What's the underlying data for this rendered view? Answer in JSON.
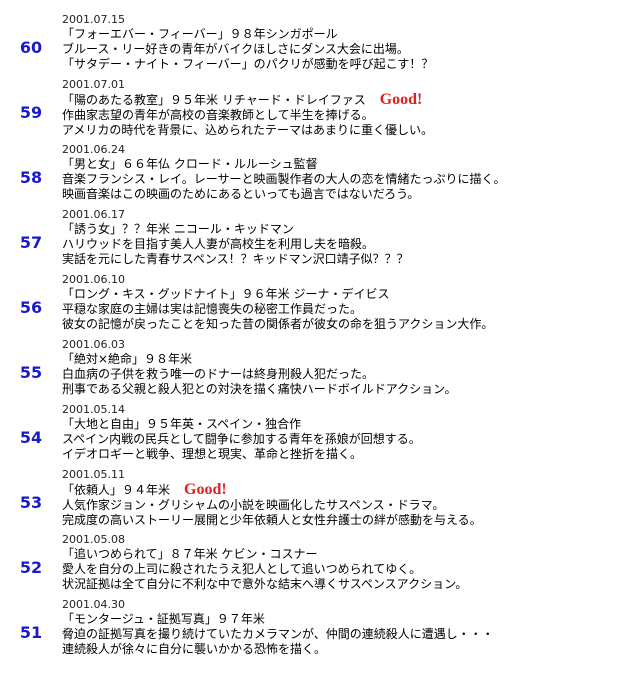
{
  "entries": [
    {
      "number": "60",
      "date": "2001.07.15",
      "title": "「フォーエバー・フィーバー」９８年シンガポール",
      "lines": [
        "ブルース・リー好きの青年がバイクほしさにダンス大会に出場。",
        "「サタデー・ナイト・フィーバー」のパクリが感動を呼び起こす！？"
      ]
    },
    {
      "number": "59",
      "date": "2001.07.01",
      "title": "「陽のあたる教室」９５年米 リチャード・ドレイファス",
      "badge": "Good!",
      "lines": [
        "作曲家志望の青年が高校の音楽教師として半生を捧げる。",
        "アメリカの時代を背景に、込められたテーマはあまりに重く優しい。"
      ]
    },
    {
      "number": "58",
      "date": "2001.06.24",
      "title": "「男と女」６６年仏 クロード・ルルーシュ監督",
      "lines": [
        "音楽フランシス・レイ。レーサーと映画製作者の大人の恋を情緒たっぷりに描く。",
        "映画音楽はこの映画のためにあるといっても過言ではないだろう。"
      ]
    },
    {
      "number": "57",
      "date": "2001.06.17",
      "title": "「誘う女」？？年米 ニコール・キッドマン",
      "lines": [
        "ハリウッドを目指す美人人妻が高校生を利用し夫を暗殺。",
        "実話を元にした青春サスペンス！？キッドマン沢口靖子似？？？"
      ]
    },
    {
      "number": "56",
      "date": "2001.06.10",
      "title": "「ロング・キス・グッドナイト」９６年米 ジーナ・デイビス",
      "lines": [
        "平穏な家庭の主婦は実は記憶喪失の秘密工作員だった。",
        "彼女の記憶が戻ったことを知った昔の関係者が彼女の命を狙うアクション大作。"
      ]
    },
    {
      "number": "55",
      "date": "2001.06.03",
      "title": "「絶対×絶命」９８年米",
      "lines": [
        "白血病の子供を救う唯一のドナーは終身刑殺人犯だった。",
        "刑事である父親と殺人犯との対決を描く痛快ハードボイルドアクション。"
      ]
    },
    {
      "number": "54",
      "date": "2001.05.14",
      "title": "「大地と自由」９５年英・スペイン・独合作",
      "lines": [
        "スペイン内戦の民兵として闘争に参加する青年を孫娘が回想する。",
        "イデオロギーと戦争、理想と現実、革命と挫折を描く。"
      ]
    },
    {
      "number": "53",
      "date": "2001.05.11",
      "title": "「依頼人」９４年米",
      "badge": "Good!",
      "lines": [
        "人気作家ジョン・グリシャムの小説を映画化したサスペンス・ドラマ。",
        "完成度の高いストーリー展開と少年依頼人と女性弁護士の絆が感動を与える。"
      ]
    },
    {
      "number": "52",
      "date": "2001.05.08",
      "title": "「追いつめられて」８７年米 ケビン・コスナー",
      "lines": [
        "愛人を自分の上司に殺されたうえ犯人として追いつめられてゆく。",
        "状況証拠は全て自分に不利な中で意外な結末へ導くサスペンスアクション。"
      ]
    },
    {
      "number": "51",
      "date": "2001.04.30",
      "title": "「モンタージュ・証拠写真」９７年米",
      "lines": [
        "脅迫の証拠写真を撮り続けていたカメラマンが、仲間の連続殺人に遭遇し・・・",
        "連続殺人が徐々に自分に襲いかかる恐怖を描く。"
      ]
    }
  ]
}
